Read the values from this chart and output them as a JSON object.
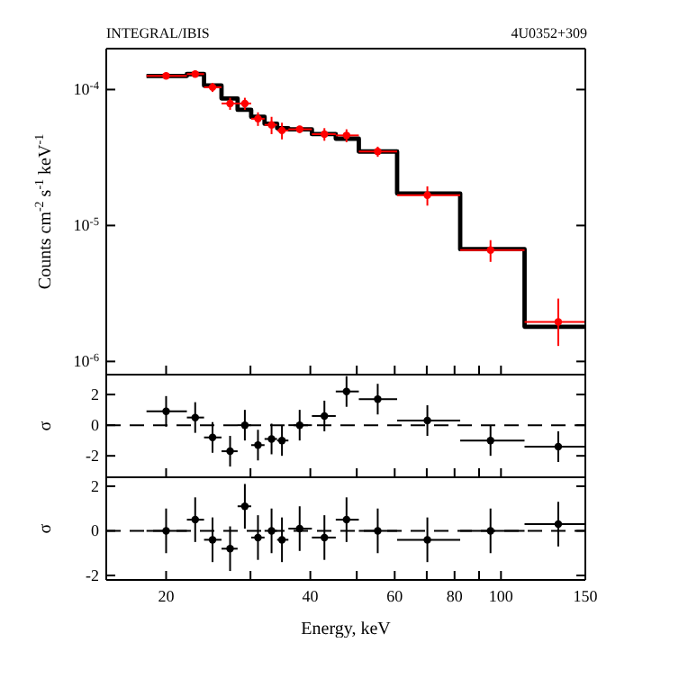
{
  "chart_data": [
    {
      "type": "scatter",
      "title": "INTEGRAL/IBIS",
      "subtitle": "4U0352+309",
      "ylabel": "Counts cm$^{-2}$ s$^{-1}$ keV$^{-1}$",
      "log": "xy",
      "xlim": [
        15,
        150
      ],
      "xticks": [
        20,
        30,
        40,
        50,
        60,
        70,
        80,
        90,
        100,
        150
      ],
      "ylim": [
        8e-07,
        0.0002
      ],
      "yticks": [
        {
          "value": 1e-06,
          "label": "10$^{-6}$"
        },
        {
          "value": 1e-05,
          "label": "10$^{-5}$"
        },
        {
          "value": 0.0001,
          "label": "10$^{-4}$"
        }
      ],
      "tick_labels": "y",
      "series": [
        {
          "color": "#ff0000",
          "x": [
            20.0,
            23.0,
            25.0,
            27.2,
            29.2,
            31.1,
            33.2,
            34.9,
            38.0,
            42.8,
            47.6,
            55.3,
            70.2,
            95.1,
            131.7
          ],
          "values": [
            0.000126,
            0.00013,
            0.000104,
            7.9e-05,
            7.9e-05,
            6.1e-05,
            5.5e-05,
            5e-05,
            5.1e-05,
            4.7e-05,
            4.6e-05,
            3.5e-05,
            1.67e-05,
            6.6e-06,
            1.95e-06
          ],
          "errors": [
            3e-06,
            4e-06,
            8e-06,
            8e-06,
            8e-06,
            7e-06,
            8e-06,
            7e-06,
            3e-06,
            5e-06,
            5e-06,
            3e-06,
            2.7e-06,
            1.2e-06,
            [
              1.3e-06,
              2.9e-06
            ]
          ],
          "xerrors": [
            [
              18.2,
              22.1
            ],
            [
              22.1,
              24.0
            ],
            [
              24.0,
              26.1
            ],
            [
              26.1,
              28.2
            ],
            [
              28.2,
              30.1
            ],
            [
              30.1,
              32.1
            ],
            [
              32.1,
              34.1
            ],
            [
              34.1,
              36.0
            ],
            [
              36.0,
              40.3
            ],
            [
              40.3,
              45.2
            ],
            [
              45.2,
              50.5
            ],
            [
              50.5,
              60.7
            ],
            [
              60.7,
              82.2
            ],
            [
              82.2,
              112
            ],
            [
              112,
              150
            ]
          ]
        },
        {
          "type": "step",
          "color": "#000000",
          "x": [
            18.2,
            22.1,
            24.0,
            26.1,
            28.2,
            30.1,
            32.1,
            34.1,
            36.0,
            40.3,
            45.2,
            50.5,
            60.7,
            82.2,
            112,
            150
          ],
          "values": [
            0.000126,
            0.00013,
            0.000107,
            8.6e-05,
            7.1e-05,
            6.3e-05,
            5.6e-05,
            5.2e-05,
            5.1e-05,
            4.7e-05,
            4.35e-05,
            3.5e-05,
            1.72e-05,
            6.7e-06,
            1.8e-06,
            1.8e-06
          ]
        }
      ]
    },
    {
      "type": "scatter",
      "ylabel": "σ",
      "log": "x",
      "xlim": [
        15,
        150
      ],
      "xticks": [
        20,
        30,
        40,
        50,
        60,
        70,
        80,
        90,
        100,
        150
      ],
      "ylim": [
        -3.4,
        3.3
      ],
      "yticks": [
        -2,
        0,
        2
      ],
      "tick_labels": "y",
      "ref_lines": [
        {
          "axis": "y",
          "value": 0,
          "line_style": "dashed",
          "color": "#000000"
        }
      ],
      "series": [
        {
          "color": "#000000",
          "x": [
            20.0,
            23.0,
            25.0,
            27.2,
            29.2,
            31.1,
            33.2,
            34.9,
            38.0,
            42.8,
            47.6,
            55.3,
            70.2,
            95.1,
            131.7
          ],
          "values": [
            0.9,
            0.5,
            -0.8,
            -1.7,
            0,
            -1.3,
            -0.9,
            -1.0,
            0,
            0.6,
            2.2,
            1.7,
            0.3,
            -1.0,
            -1.4
          ],
          "errors": [
            1,
            1,
            1,
            1,
            1,
            1,
            1,
            1,
            1,
            1,
            1,
            1,
            1,
            1,
            1
          ],
          "xerrors": [
            [
              18.2,
              22.1
            ],
            [
              22.1,
              24.0
            ],
            [
              24.0,
              26.1
            ],
            [
              26.1,
              28.2
            ],
            [
              28.2,
              30.1
            ],
            [
              30.1,
              32.1
            ],
            [
              32.1,
              34.1
            ],
            [
              34.1,
              36.0
            ],
            [
              36.0,
              40.3
            ],
            [
              40.3,
              45.2
            ],
            [
              45.2,
              50.5
            ],
            [
              50.5,
              60.7
            ],
            [
              60.7,
              82.2
            ],
            [
              82.2,
              112
            ],
            [
              112,
              150
            ]
          ]
        }
      ]
    },
    {
      "type": "scatter",
      "ylabel": "σ",
      "xlabel": "Energy, keV",
      "log": "x",
      "xlim": [
        15,
        150
      ],
      "xticks": [
        20,
        {
          "value": 30,
          "label": null
        },
        40,
        {
          "value": 50,
          "label": null
        },
        60,
        {
          "value": 70,
          "label": null
        },
        80,
        {
          "value": 90,
          "label": null
        },
        100,
        150
      ],
      "ylim": [
        -2.2,
        2.4
      ],
      "yticks": [
        -2,
        0,
        2
      ],
      "ref_lines": [
        {
          "axis": "y",
          "value": 0,
          "line_style": "dashed",
          "color": "#000000"
        }
      ],
      "series": [
        {
          "color": "#000000",
          "x": [
            20.0,
            23.0,
            25.0,
            27.2,
            29.2,
            31.1,
            33.2,
            34.9,
            38.0,
            42.8,
            47.6,
            55.3,
            70.2,
            95.1,
            131.7
          ],
          "values": [
            0,
            0.5,
            -0.4,
            -0.8,
            1.1,
            -0.3,
            0,
            -0.4,
            0.1,
            -0.3,
            0.5,
            0,
            -0.4,
            0,
            0.3
          ],
          "errors": [
            1,
            1,
            1,
            1,
            1,
            1,
            1,
            1,
            1,
            1,
            1,
            1,
            1,
            1,
            1
          ],
          "xerrors": [
            [
              18.2,
              22.1
            ],
            [
              22.1,
              24.0
            ],
            [
              24.0,
              26.1
            ],
            [
              26.1,
              28.2
            ],
            [
              28.2,
              30.1
            ],
            [
              30.1,
              32.1
            ],
            [
              32.1,
              34.1
            ],
            [
              34.1,
              36.0
            ],
            [
              36.0,
              40.3
            ],
            [
              40.3,
              45.2
            ],
            [
              45.2,
              50.5
            ],
            [
              50.5,
              60.7
            ],
            [
              60.7,
              82.2
            ],
            [
              82.2,
              112
            ],
            [
              112,
              150
            ]
          ]
        }
      ]
    }
  ]
}
